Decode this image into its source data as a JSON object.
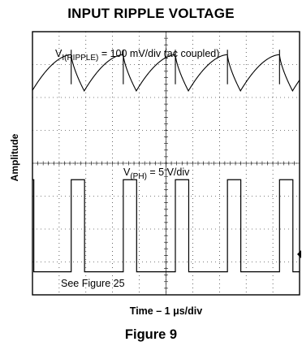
{
  "figure": {
    "title": "INPUT RIPPLE VOLTAGE",
    "caption": "Figure 9"
  },
  "chart_data": {
    "type": "line",
    "title": "INPUT RIPPLE VOLTAGE",
    "xlabel": "Time – 1 μs/div",
    "ylabel": "Amplitude",
    "grid": true,
    "grid_divisions": {
      "x": 10,
      "y": 8
    },
    "annotations": {
      "ripple": {
        "main": "V",
        "sub": "I(RIPPLE)",
        "rest": " = 100 mV/div (ac coupled)"
      },
      "ph": {
        "main": "V",
        "sub": "(PH)",
        "rest": " = 5 V/div"
      },
      "see": "See Figure 25"
    },
    "series": [
      {
        "trace": "ripple",
        "period_div": 1.95,
        "phase_div": 1.45,
        "min_div": 6.2,
        "max_div": 7.3
      },
      {
        "trace": "switch_node",
        "period_div": 1.95,
        "high_start_div": 1.45,
        "high_width_div": 0.5,
        "low_level_div": 0.7,
        "high_level_div": 3.5
      }
    ]
  }
}
